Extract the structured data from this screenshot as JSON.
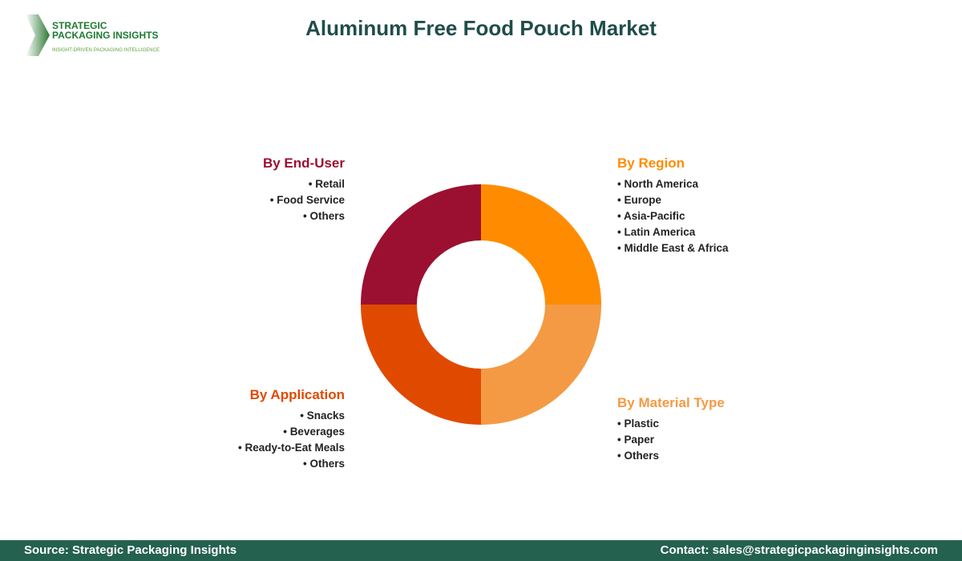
{
  "logo": {
    "name_line1": "STRATEGIC",
    "name_line2": "PACKAGING INSIGHTS",
    "tagline": "INSIGHT-DRIVEN PACKAGING INTELLIGENCE"
  },
  "title": "Aluminum Free Food Pouch Market",
  "chart_data": {
    "type": "pie",
    "donut": true,
    "title": "Aluminum Free Food Pouch Market",
    "slices": [
      {
        "label": "By Region",
        "value": 25,
        "color": "#FF8C00",
        "items": [
          "North America",
          "Europe",
          "Asia-Pacific",
          "Latin America",
          "Middle East & Africa"
        ]
      },
      {
        "label": "By Material Type",
        "value": 25,
        "color": "#F49A45",
        "items": [
          "Plastic",
          "Paper",
          "Others"
        ]
      },
      {
        "label": "By Application",
        "value": 25,
        "color": "#E04A00",
        "items": [
          "Snacks",
          "Beverages",
          "Ready-to-Eat Meals",
          "Others"
        ]
      },
      {
        "label": "By End-User",
        "value": 25,
        "color": "#9B1030",
        "items": [
          "Retail",
          "Food Service",
          "Others"
        ]
      }
    ]
  },
  "footer": {
    "source": "Source: Strategic Packaging Insights",
    "contact": "Contact: sales@strategicpackaginginsights.com"
  }
}
